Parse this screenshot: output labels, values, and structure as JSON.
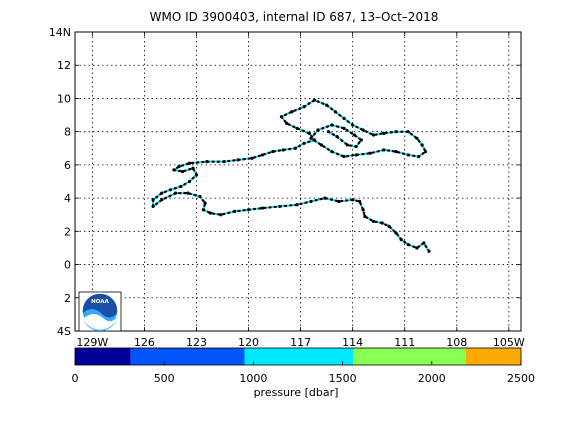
{
  "title": "WMO ID 3900403, internal ID 687, 13–Oct–2018",
  "logo": {
    "text": "NOAA",
    "icon": "noaa-logo-icon"
  },
  "colors": {
    "track_line": "#00e5ff",
    "track_dots": "#000000",
    "grid": "#000000",
    "ocean": "#ffffff",
    "noaa_blue": "#1a4fa8",
    "noaa_light": "#33aaff"
  },
  "chart_data": {
    "type": "map-track",
    "xlim": [
      -130,
      -104.3
    ],
    "ylim": [
      -4,
      14
    ],
    "x_ticks": [
      {
        "value": -129,
        "label": "129W"
      },
      {
        "value": -126,
        "label": "126"
      },
      {
        "value": -123,
        "label": "123"
      },
      {
        "value": -120,
        "label": "120"
      },
      {
        "value": -117,
        "label": "117"
      },
      {
        "value": -114,
        "label": "114"
      },
      {
        "value": -111,
        "label": "111"
      },
      {
        "value": -108,
        "label": "108"
      },
      {
        "value": -105,
        "label": "105W"
      }
    ],
    "y_ticks": [
      {
        "value": 14,
        "label": "14N"
      },
      {
        "value": 12,
        "label": "12"
      },
      {
        "value": 10,
        "label": "10"
      },
      {
        "value": 8,
        "label": "8"
      },
      {
        "value": 6,
        "label": "6"
      },
      {
        "value": 4,
        "label": "4"
      },
      {
        "value": 2,
        "label": "2"
      },
      {
        "value": 0,
        "label": "0"
      },
      {
        "value": -2,
        "label": "2"
      },
      {
        "value": -4,
        "label": "4S"
      }
    ],
    "grid": true,
    "track": [
      [
        -109.6,
        0.8
      ],
      [
        -109.9,
        1.3
      ],
      [
        -110.3,
        1.0
      ],
      [
        -110.8,
        1.2
      ],
      [
        -111.2,
        1.5
      ],
      [
        -111.5,
        1.9
      ],
      [
        -111.9,
        2.3
      ],
      [
        -112.3,
        2.5
      ],
      [
        -112.8,
        2.6
      ],
      [
        -113.3,
        2.9
      ],
      [
        -113.4,
        3.3
      ],
      [
        -113.6,
        3.8
      ],
      [
        -114.0,
        3.9
      ],
      [
        -114.8,
        3.8
      ],
      [
        -115.6,
        4.0
      ],
      [
        -116.4,
        3.8
      ],
      [
        -117.2,
        3.6
      ],
      [
        -118.2,
        3.5
      ],
      [
        -119.2,
        3.4
      ],
      [
        -120.0,
        3.3
      ],
      [
        -120.8,
        3.2
      ],
      [
        -121.6,
        3.0
      ],
      [
        -122.2,
        3.1
      ],
      [
        -122.6,
        3.3
      ],
      [
        -122.5,
        3.7
      ],
      [
        -122.8,
        4.1
      ],
      [
        -123.5,
        4.3
      ],
      [
        -124.2,
        4.3
      ],
      [
        -125.0,
        3.9
      ],
      [
        -125.5,
        3.5
      ],
      [
        -125.5,
        3.9
      ],
      [
        -125.0,
        4.3
      ],
      [
        -124.5,
        4.5
      ],
      [
        -123.9,
        4.7
      ],
      [
        -123.4,
        5.0
      ],
      [
        -123.0,
        5.4
      ],
      [
        -123.2,
        5.8
      ],
      [
        -123.8,
        5.6
      ],
      [
        -124.3,
        5.7
      ],
      [
        -124.0,
        5.9
      ],
      [
        -123.4,
        6.1
      ],
      [
        -122.4,
        6.2
      ],
      [
        -121.4,
        6.2
      ],
      [
        -120.6,
        6.3
      ],
      [
        -119.8,
        6.4
      ],
      [
        -119.2,
        6.6
      ],
      [
        -118.6,
        6.8
      ],
      [
        -118.0,
        6.9
      ],
      [
        -117.3,
        7.0
      ],
      [
        -116.8,
        7.3
      ],
      [
        -116.2,
        7.5
      ],
      [
        -116.5,
        7.9
      ],
      [
        -117.2,
        8.2
      ],
      [
        -117.8,
        8.5
      ],
      [
        -118.1,
        8.9
      ],
      [
        -117.5,
        9.2
      ],
      [
        -116.8,
        9.5
      ],
      [
        -116.2,
        9.9
      ],
      [
        -115.5,
        9.6
      ],
      [
        -115.0,
        9.2
      ],
      [
        -114.5,
        8.8
      ],
      [
        -114.0,
        8.4
      ],
      [
        -113.4,
        8.1
      ],
      [
        -112.8,
        7.8
      ],
      [
        -112.2,
        7.9
      ],
      [
        -111.5,
        8.0
      ],
      [
        -110.8,
        8.0
      ],
      [
        -110.3,
        7.6
      ],
      [
        -110.0,
        7.2
      ],
      [
        -109.8,
        6.8
      ],
      [
        -110.2,
        6.5
      ],
      [
        -110.8,
        6.6
      ],
      [
        -111.5,
        6.8
      ],
      [
        -112.2,
        6.9
      ],
      [
        -113.0,
        6.7
      ],
      [
        -113.8,
        6.6
      ],
      [
        -114.5,
        6.5
      ],
      [
        -115.2,
        6.8
      ],
      [
        -115.8,
        7.2
      ],
      [
        -116.4,
        7.6
      ],
      [
        -116.0,
        8.1
      ],
      [
        -115.2,
        8.4
      ],
      [
        -114.5,
        8.2
      ],
      [
        -113.9,
        7.8
      ],
      [
        -113.5,
        7.5
      ],
      [
        -113.8,
        7.1
      ],
      [
        -114.3,
        7.2
      ],
      [
        -114.9,
        7.7
      ],
      [
        -115.4,
        8.0
      ]
    ],
    "colorbar": {
      "label": "pressure [dbar]",
      "range": [
        0,
        2500
      ],
      "ticks": [
        "0",
        "500",
        "1000",
        "1500",
        "2000",
        "2500"
      ],
      "segments": [
        {
          "from": 0,
          "to": 312,
          "color": "#000099"
        },
        {
          "from": 312,
          "to": 950,
          "color": "#0055ff"
        },
        {
          "from": 950,
          "to": 1560,
          "color": "#00e8ff"
        },
        {
          "from": 1560,
          "to": 2190,
          "color": "#88ff55"
        },
        {
          "from": 2190,
          "to": 2500,
          "color": "#ffaa00"
        }
      ]
    }
  }
}
